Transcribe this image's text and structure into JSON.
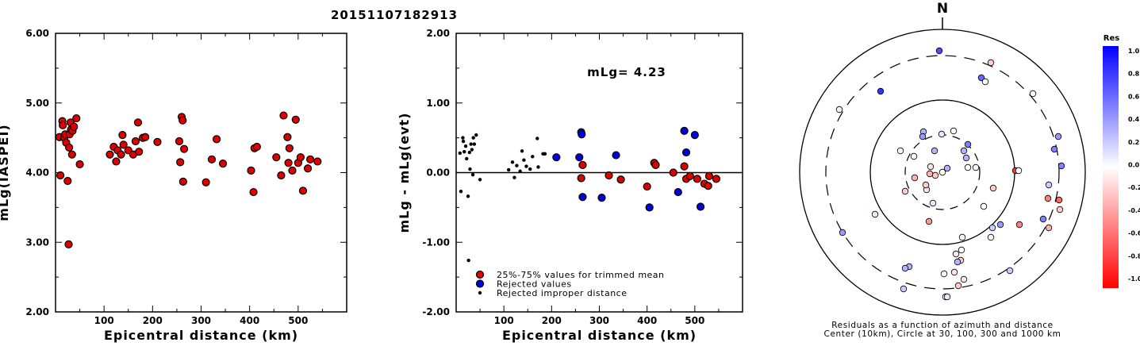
{
  "title": "20151107182913",
  "north_label": "N",
  "colorbar": {
    "title": "Res",
    "ticks": [
      "1.0",
      "0.8",
      "0.6",
      "0.4",
      "0.2",
      "0.0",
      "-0.2",
      "-0.4",
      "-0.6",
      "-0.8",
      "-1.0"
    ],
    "top_color": "#0000ff",
    "mid_color": "#ffffff",
    "bottom_color": "#ff0000"
  },
  "chart_data": [
    {
      "type": "scatter",
      "xlabel": "Epicentral distance (km)",
      "ylabel": "mLg(IASPEI)",
      "xlim": [
        0,
        600
      ],
      "ylim": [
        2.0,
        6.0
      ],
      "xticks": [
        "100",
        "200",
        "300",
        "400",
        "500"
      ],
      "yticks": [
        "2.00",
        "3.00",
        "4.00",
        "5.00",
        "6.00"
      ],
      "marker_color": "#dd0000",
      "points": [
        [
          8,
          4.51
        ],
        [
          10,
          3.96
        ],
        [
          14,
          4.74
        ],
        [
          15,
          4.68
        ],
        [
          18,
          4.5
        ],
        [
          20,
          4.55
        ],
        [
          22,
          4.43
        ],
        [
          25,
          3.88
        ],
        [
          27,
          2.97
        ],
        [
          28,
          4.36
        ],
        [
          29,
          4.55
        ],
        [
          31,
          4.72
        ],
        [
          32,
          4.62
        ],
        [
          34,
          4.26
        ],
        [
          35,
          4.6
        ],
        [
          38,
          4.66
        ],
        [
          43,
          4.78
        ],
        [
          50,
          4.12
        ],
        [
          112,
          4.26
        ],
        [
          120,
          4.37
        ],
        [
          125,
          4.16
        ],
        [
          128,
          4.32
        ],
        [
          135,
          4.26
        ],
        [
          138,
          4.54
        ],
        [
          140,
          4.4
        ],
        [
          150,
          4.32
        ],
        [
          160,
          4.26
        ],
        [
          165,
          4.45
        ],
        [
          170,
          4.72
        ],
        [
          172,
          4.3
        ],
        [
          180,
          4.5
        ],
        [
          185,
          4.51
        ],
        [
          210,
          4.44
        ],
        [
          255,
          4.45
        ],
        [
          257,
          4.15
        ],
        [
          260,
          4.8
        ],
        [
          262,
          4.75
        ],
        [
          263,
          3.87
        ],
        [
          265,
          4.34
        ],
        [
          310,
          3.86
        ],
        [
          322,
          4.19
        ],
        [
          332,
          4.48
        ],
        [
          345,
          4.13
        ],
        [
          403,
          4.03
        ],
        [
          408,
          3.72
        ],
        [
          410,
          4.35
        ],
        [
          415,
          4.37
        ],
        [
          455,
          4.22
        ],
        [
          465,
          3.96
        ],
        [
          470,
          4.82
        ],
        [
          478,
          4.51
        ],
        [
          480,
          4.14
        ],
        [
          482,
          4.35
        ],
        [
          488,
          4.03
        ],
        [
          495,
          4.76
        ],
        [
          500,
          4.14
        ],
        [
          505,
          4.22
        ],
        [
          510,
          3.74
        ],
        [
          520,
          4.06
        ],
        [
          525,
          4.19
        ],
        [
          540,
          4.16
        ]
      ]
    },
    {
      "type": "scatter",
      "xlabel": "Epicentral distance (km)",
      "ylabel": "mLg - mLg(evt)",
      "xlim": [
        0,
        600
      ],
      "ylim": [
        -2.0,
        2.0
      ],
      "xticks": [
        "100",
        "200",
        "300",
        "400",
        "500"
      ],
      "yticks": [
        "-2.00",
        "-1.00",
        "0.00",
        "1.00",
        "2.00"
      ],
      "annotation": "mLg= 4.23",
      "zero_line": true,
      "legend": [
        {
          "label": "25%-75% values for trimmed mean",
          "color": "#dd0000",
          "marker": "circle"
        },
        {
          "label": "Rejected values",
          "color": "#0000dd",
          "marker": "circle"
        },
        {
          "label": "Rejected improper distance",
          "color": "#000000",
          "marker": "dot"
        }
      ],
      "series": [
        {
          "name": "25%-75% values for trimmed mean",
          "color": "#dd0000",
          "points": [
            [
              262,
              -0.08
            ],
            [
              265,
              0.11
            ],
            [
              320,
              -0.04
            ],
            [
              345,
              -0.1
            ],
            [
              400,
              -0.2
            ],
            [
              415,
              0.14
            ],
            [
              418,
              0.11
            ],
            [
              455,
              0.0
            ],
            [
              478,
              0.09
            ],
            [
              482,
              -0.09
            ],
            [
              490,
              -0.05
            ],
            [
              505,
              -0.09
            ],
            [
              520,
              -0.16
            ],
            [
              528,
              -0.19
            ],
            [
              530,
              -0.05
            ],
            [
              545,
              -0.09
            ]
          ]
        },
        {
          "name": "Rejected values",
          "color": "#0000dd",
          "points": [
            [
              210,
              0.22
            ],
            [
              258,
              0.22
            ],
            [
              262,
              0.58
            ],
            [
              263,
              0.55
            ],
            [
              265,
              -0.35
            ],
            [
              305,
              -0.36
            ],
            [
              335,
              0.25
            ],
            [
              405,
              -0.5
            ],
            [
              465,
              -0.28
            ],
            [
              478,
              0.6
            ],
            [
              482,
              0.29
            ],
            [
              500,
              0.54
            ],
            [
              512,
              -0.49
            ]
          ]
        },
        {
          "name": "Rejected improper distance",
          "color": "#000000",
          "points": [
            [
              8,
              0.28
            ],
            [
              10,
              -0.27
            ],
            [
              14,
              0.5
            ],
            [
              15,
              0.45
            ],
            [
              17,
              0.3
            ],
            [
              20,
              0.38
            ],
            [
              22,
              0.2
            ],
            [
              25,
              -0.34
            ],
            [
              26,
              -1.26
            ],
            [
              28,
              0.29
            ],
            [
              29,
              0.05
            ],
            [
              31,
              0.41
            ],
            [
              33,
              0.33
            ],
            [
              35,
              -0.03
            ],
            [
              36,
              0.5
            ],
            [
              38,
              0.41
            ],
            [
              42,
              0.54
            ],
            [
              50,
              -0.1
            ],
            [
              110,
              0.04
            ],
            [
              118,
              0.15
            ],
            [
              122,
              -0.07
            ],
            [
              127,
              0.1
            ],
            [
              134,
              0.02
            ],
            [
              138,
              0.31
            ],
            [
              142,
              0.18
            ],
            [
              147,
              0.09
            ],
            [
              155,
              0.05
            ],
            [
              160,
              0.23
            ],
            [
              170,
              0.49
            ],
            [
              172,
              0.08
            ],
            [
              182,
              0.27
            ],
            [
              186,
              0.27
            ]
          ]
        }
      ]
    },
    {
      "type": "scatter",
      "subtype": "polar",
      "caption": "Residuals as a function of azimuth and distance",
      "caption2": "Center (10km), Circle at 30, 100, 300 and 1000 km",
      "points_res": [
        [
          0.7,
          0.5
        ],
        [
          -0.2,
          0.8
        ],
        [
          0.8,
          0.4
        ],
        [
          0.6,
          0.5
        ],
        [
          -0.05,
          0.05
        ],
        [
          0.0,
          0.5
        ],
        [
          0.0,
          0.45
        ],
        [
          0.4,
          0.5
        ],
        [
          0.5,
          0.5
        ],
        [
          0.5,
          0.6
        ],
        [
          -0.8,
          0.6
        ],
        [
          0.3,
          0.3
        ],
        [
          0.4,
          0.4
        ],
        [
          0.1,
          0.3
        ],
        [
          0.5,
          0.5
        ],
        [
          0.3,
          0.3
        ],
        [
          0.0,
          0.0
        ],
        [
          0.3,
          0.35
        ],
        [
          -0.2,
          0.3
        ],
        [
          0.3,
          0.4
        ],
        [
          -0.3,
          0.4
        ],
        [
          -0.3,
          0.2
        ],
        [
          0.0,
          0.0
        ],
        [
          0.0,
          0.4
        ],
        [
          -0.2,
          0.1
        ],
        [
          0.2,
          0.4
        ],
        [
          -0.5,
          0.55
        ],
        [
          -0.6,
          0.55
        ],
        [
          -0.2,
          0.2
        ],
        [
          -0.1,
          0.2
        ],
        [
          -0.1,
          0.2
        ],
        [
          -0.4,
          0.4
        ],
        [
          -0.3,
          0.4
        ],
        [
          -0.5,
          0.5
        ],
        [
          -0.2,
          0.15
        ],
        [
          0.0,
          0.0
        ],
        [
          0.0,
          0.1
        ],
        [
          0.0,
          0.2
        ],
        [
          0.4,
          0.2
        ],
        [
          0.5,
          0.2
        ],
        [
          0.2,
          0.1
        ],
        [
          0.2,
          0.2
        ],
        [
          0.4,
          0.4
        ],
        [
          0.3,
          0.3
        ],
        [
          0.3,
          0.3
        ],
        [
          0.0,
          0.1
        ],
        [
          -0.1,
          0.1
        ],
        [
          -0.2,
          0.2
        ],
        [
          0.0,
          0.1
        ],
        [
          -0.1,
          0.1
        ],
        [
          0.3,
          0.3
        ],
        [
          -0.1,
          0.1
        ],
        [
          -0.2,
          0.1
        ],
        [
          0.0,
          0.2
        ],
        [
          0.2,
          0.1
        ],
        [
          0.1,
          0.2
        ],
        [
          0.0,
          0.0
        ],
        [
          0.0,
          0.1
        ],
        [
          -0.1,
          0.2
        ],
        [
          0.1,
          0.1
        ],
        [
          0.0,
          0.0
        ],
        [
          -0.2,
          0.2
        ],
        [
          0.3,
          0.3
        ],
        [
          0.0,
          0.0
        ]
      ]
    }
  ]
}
